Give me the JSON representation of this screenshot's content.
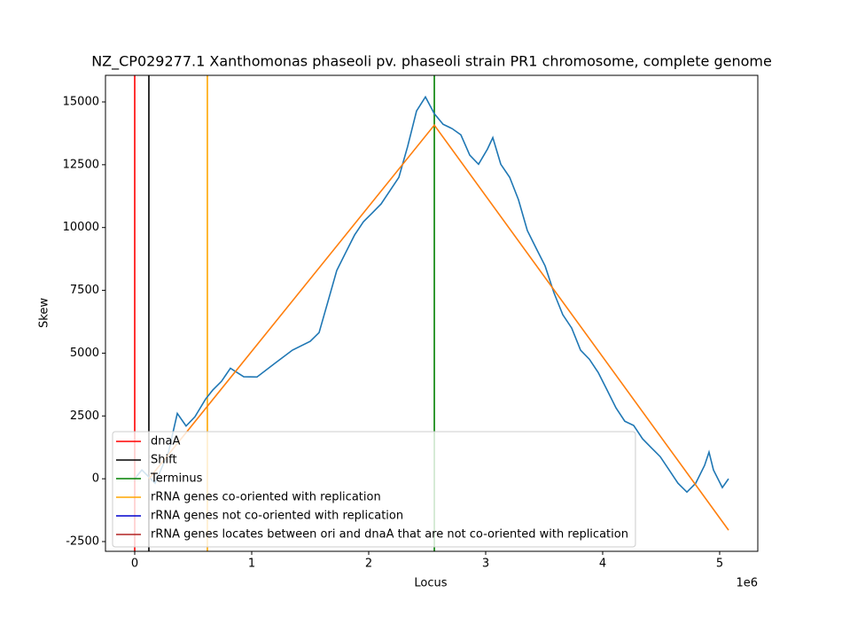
{
  "chart_data": {
    "type": "line",
    "title": "NZ_CP029277.1 Xanthomonas phaseoli pv. phaseoli strain PR1 chromosome, complete genome",
    "xlabel": "Locus",
    "ylabel": "Skew",
    "x_offset_label": "1e6",
    "xlim": [
      -250000,
      5326000
    ],
    "ylim": [
      -2888,
      16058
    ],
    "xticks": [
      {
        "value": 0,
        "label": "0"
      },
      {
        "value": 1000000,
        "label": "1"
      },
      {
        "value": 2000000,
        "label": "2"
      },
      {
        "value": 3000000,
        "label": "3"
      },
      {
        "value": 4000000,
        "label": "4"
      },
      {
        "value": 5000000,
        "label": "5"
      }
    ],
    "yticks": [
      -2500,
      0,
      2500,
      5000,
      7500,
      10000,
      12500,
      15000
    ],
    "legend_position": "lower left",
    "series": [
      {
        "color": "#1f77b4",
        "x": [
          0,
          61000,
          174000,
          288000,
          364000,
          439000,
          515000,
          606000,
          667000,
          742000,
          818000,
          932000,
          1045000,
          1197000,
          1348000,
          1500000,
          1576000,
          1652000,
          1727000,
          1803000,
          1879000,
          1955000,
          2030000,
          2106000,
          2182000,
          2258000,
          2333000,
          2409000,
          2485000,
          2561000,
          2636000,
          2712000,
          2788000,
          2864000,
          2939000,
          3015000,
          3061000,
          3129000,
          3205000,
          3280000,
          3356000,
          3432000,
          3508000,
          3583000,
          3659000,
          3735000,
          3811000,
          3886000,
          3962000,
          4038000,
          4114000,
          4189000,
          4265000,
          4341000,
          4417000,
          4492000,
          4568000,
          4644000,
          4720000,
          4795000,
          4871000,
          4909000,
          4947000,
          5023000,
          5076000
        ],
        "values": [
          0,
          350,
          -180,
          1050,
          2600,
          2100,
          2470,
          3175,
          3530,
          3880,
          4400,
          4060,
          4050,
          4590,
          5120,
          5470,
          5820,
          7060,
          8290,
          9000,
          9700,
          10230,
          10580,
          10940,
          11470,
          12000,
          13230,
          14640,
          15200,
          14530,
          14110,
          13940,
          13690,
          12880,
          12520,
          13120,
          13580,
          12520,
          12000,
          11110,
          9880,
          9170,
          8470,
          7410,
          6530,
          6000,
          5120,
          4760,
          4230,
          3530,
          2820,
          2290,
          2120,
          1590,
          1230,
          880,
          350,
          -180,
          -530,
          -180,
          530,
          1060,
          350,
          -350,
          0
        ]
      },
      {
        "color": "#ff7f0e",
        "x": [
          121000,
          2561000,
          5076000
        ],
        "values": [
          0,
          14077,
          -2046
        ]
      }
    ],
    "markers": [
      {
        "name": "dnaA",
        "color": "#ff0000",
        "x": 0
      },
      {
        "name": "Shift",
        "color": "#000000",
        "x": 121000
      },
      {
        "name": "Terminus",
        "color": "#008000",
        "x": 2561000
      },
      {
        "name": "rRNA genes co-oriented with replication",
        "color": "#ffa500",
        "x": 621000
      },
      {
        "name": "rRNA genes not co-oriented with replication",
        "color": "#0000cd"
      },
      {
        "name": "rRNA genes locates between ori and dnaA that are not co-oriented with replication",
        "color": "#b22222"
      }
    ]
  }
}
